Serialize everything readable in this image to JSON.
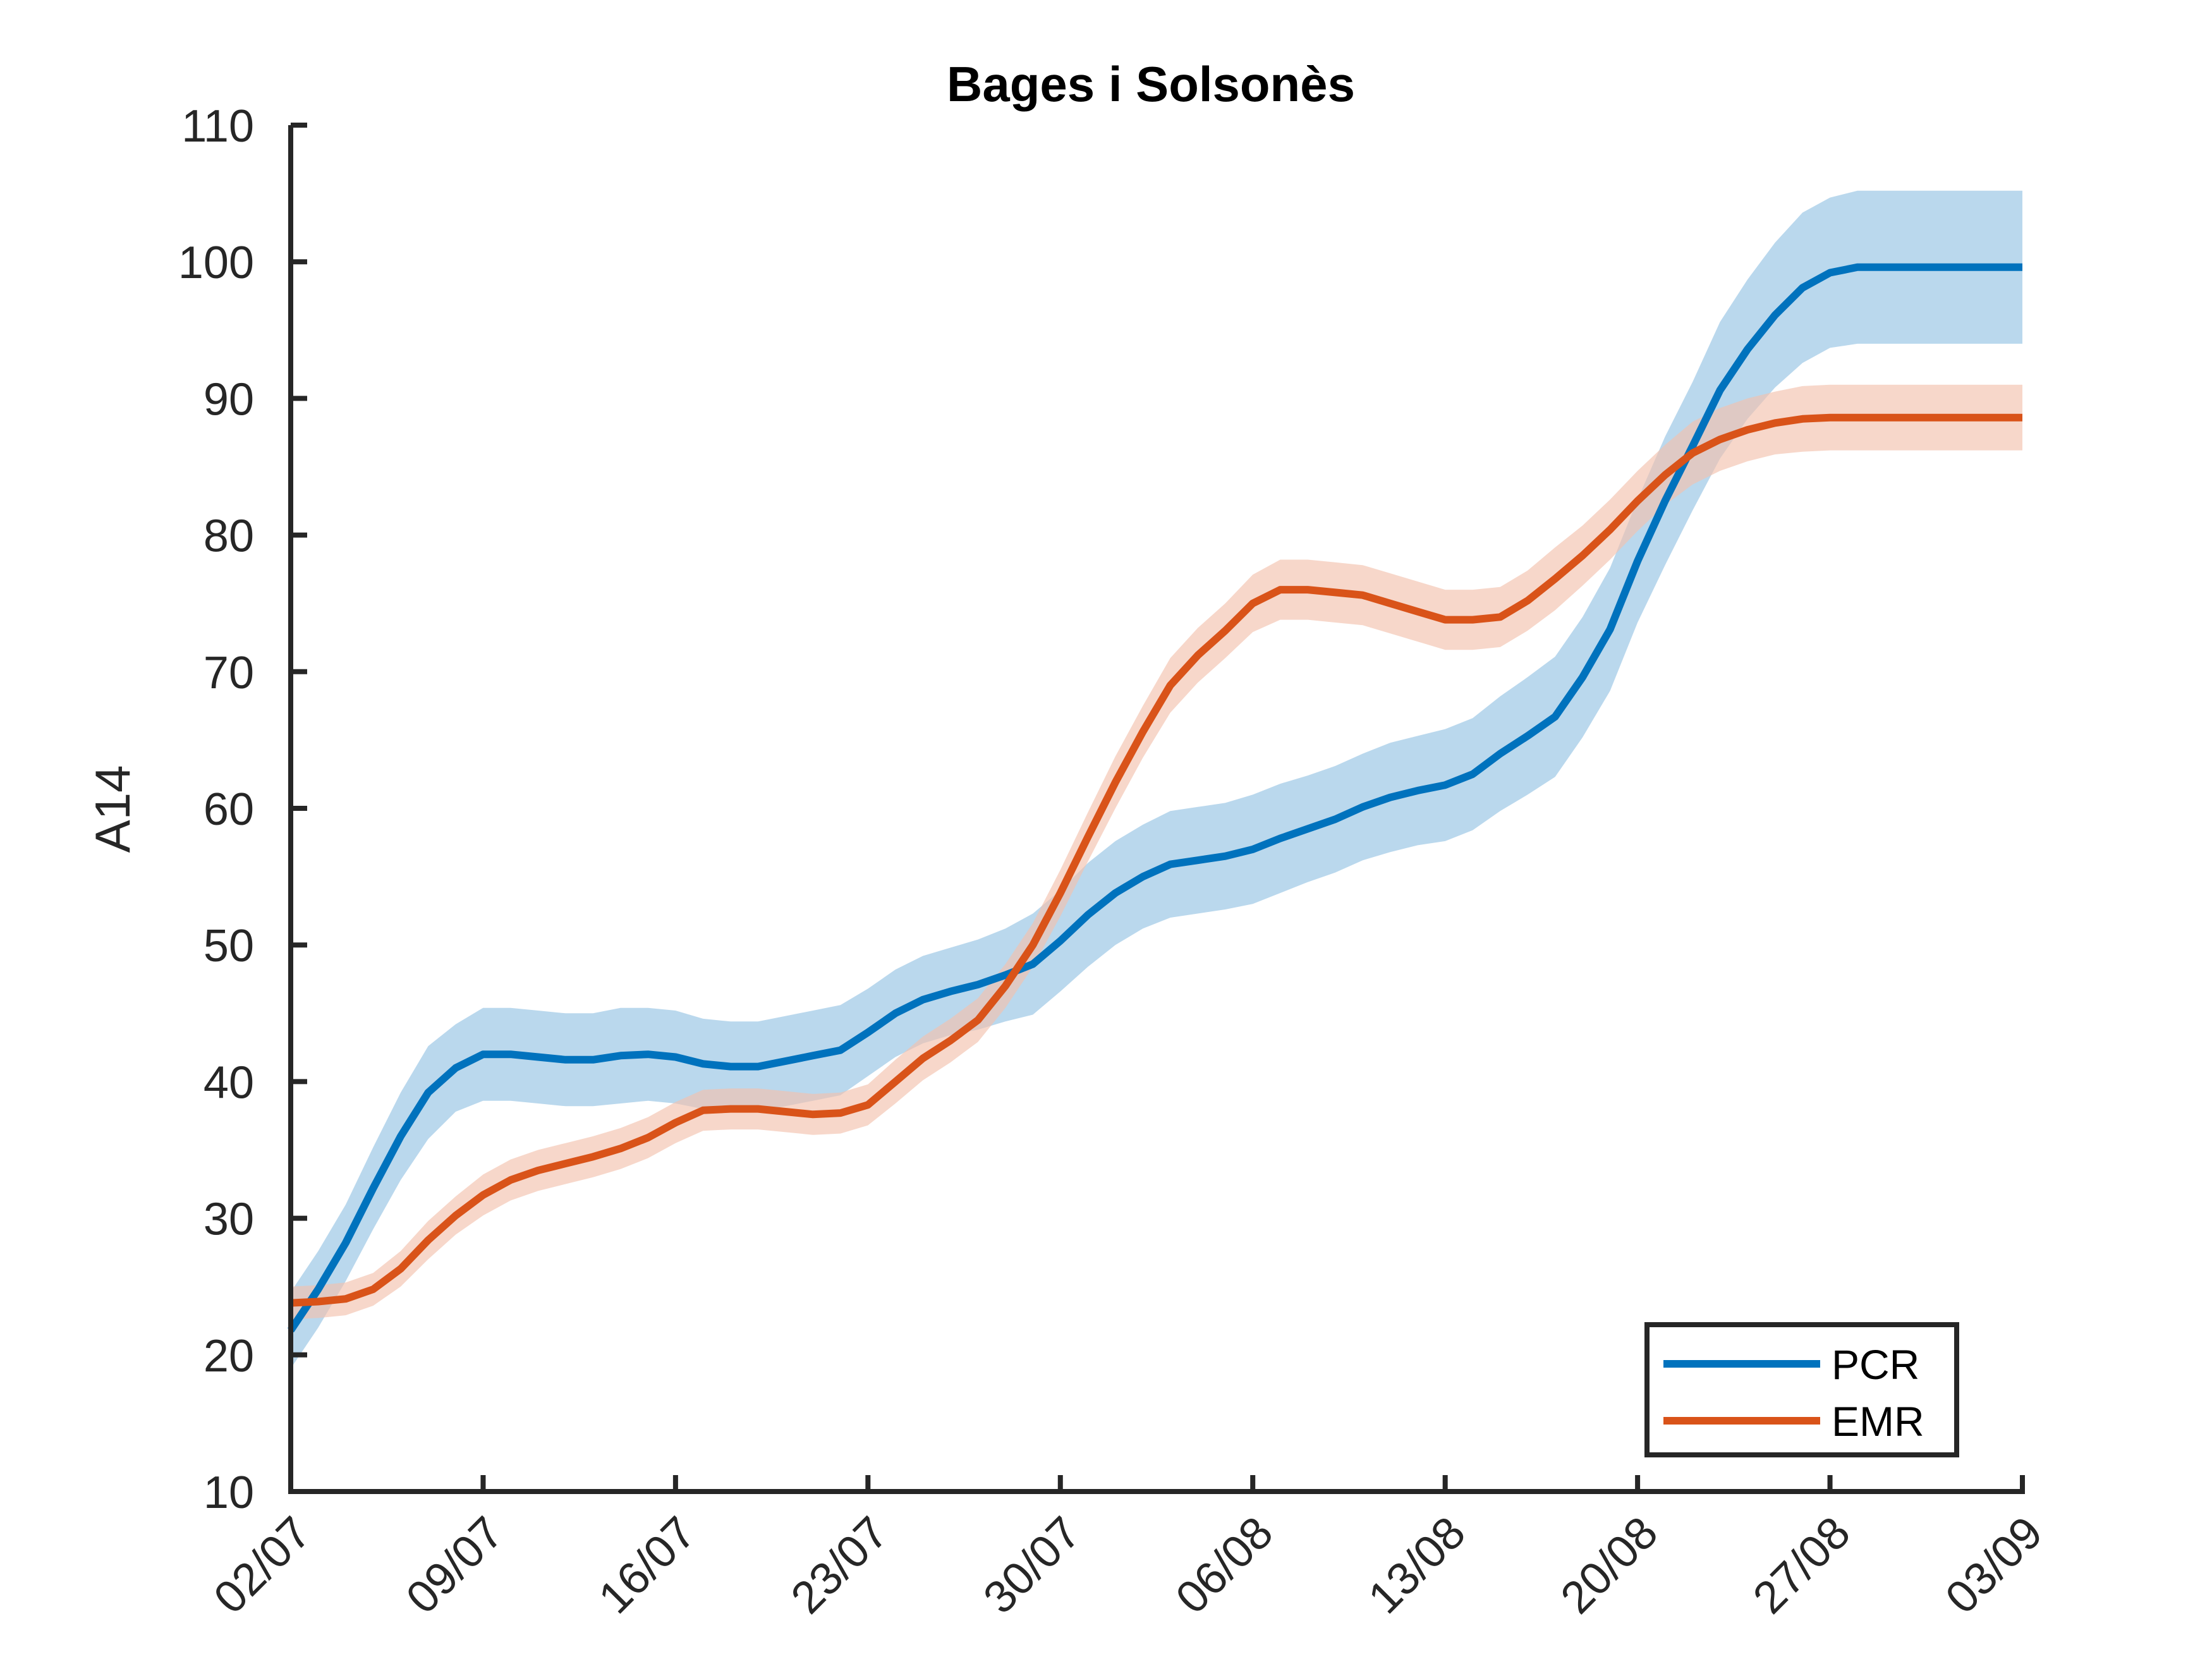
{
  "chart_data": {
    "type": "line",
    "title": "Bages i Solsonès",
    "xlabel": "",
    "ylabel": "A14",
    "ylim": [
      10,
      110
    ],
    "yticks": [
      10,
      20,
      30,
      40,
      50,
      60,
      70,
      80,
      90,
      100,
      110
    ],
    "x_tick_labels": [
      "02/07",
      "09/07",
      "16/07",
      "23/07",
      "30/07",
      "06/08",
      "13/08",
      "20/08",
      "27/08",
      "03/09"
    ],
    "x_tick_days": [
      0,
      7,
      14,
      21,
      28,
      35,
      42,
      49,
      56,
      63
    ],
    "legend_position": "bottom-right",
    "grid": false,
    "series": [
      {
        "name": "PCR",
        "color": "#0072BD",
        "band_color": "#9CC8E6",
        "day": [
          0,
          1,
          2,
          3,
          4,
          5,
          6,
          7,
          8,
          9,
          10,
          11,
          12,
          13,
          14,
          15,
          16,
          17,
          18,
          19,
          20,
          21,
          22,
          23,
          24,
          25,
          26,
          27,
          28,
          29,
          30,
          31,
          32,
          33,
          34,
          35,
          36,
          37,
          38,
          39,
          40,
          41,
          42,
          43,
          44,
          45,
          46,
          47,
          48,
          49,
          50,
          51,
          52,
          53,
          54,
          55,
          56,
          57,
          58,
          59,
          60,
          61,
          62,
          63
        ],
        "values": [
          21.8,
          24.8,
          28.2,
          32.2,
          36.0,
          39.2,
          41.0,
          42.0,
          42.0,
          41.8,
          41.6,
          41.6,
          41.9,
          42.0,
          41.8,
          41.3,
          41.1,
          41.1,
          41.5,
          41.9,
          42.3,
          43.6,
          45.0,
          46.0,
          46.6,
          47.1,
          47.8,
          48.6,
          50.3,
          52.2,
          53.8,
          55.0,
          55.9,
          56.2,
          56.5,
          57.0,
          57.8,
          58.5,
          59.2,
          60.1,
          60.8,
          61.3,
          61.7,
          62.5,
          64.0,
          65.3,
          66.7,
          69.6,
          73.1,
          78.1,
          82.5,
          86.5,
          90.6,
          93.6,
          96.1,
          98.1,
          99.2,
          99.6,
          99.6,
          99.6,
          99.6,
          99.6,
          99.6,
          99.6
        ],
        "lower": [
          19.0,
          22.0,
          25.4,
          29.2,
          32.8,
          35.8,
          37.8,
          38.6,
          38.6,
          38.4,
          38.2,
          38.2,
          38.4,
          38.6,
          38.4,
          38.0,
          37.8,
          37.8,
          38.2,
          38.6,
          39.0,
          40.4,
          41.8,
          42.8,
          43.4,
          43.8,
          44.4,
          44.9,
          46.6,
          48.4,
          50.0,
          51.2,
          52.0,
          52.3,
          52.6,
          53.0,
          53.8,
          54.6,
          55.3,
          56.2,
          56.8,
          57.3,
          57.6,
          58.4,
          59.8,
          61.0,
          62.3,
          65.2,
          68.6,
          73.6,
          77.8,
          81.8,
          85.6,
          88.5,
          90.8,
          92.6,
          93.7,
          94.0,
          94.0,
          94.0,
          94.0,
          94.0,
          94.0,
          94.0
        ],
        "upper": [
          24.6,
          27.6,
          31.0,
          35.2,
          39.2,
          42.6,
          44.2,
          45.4,
          45.4,
          45.2,
          45.0,
          45.0,
          45.4,
          45.4,
          45.2,
          44.6,
          44.4,
          44.4,
          44.8,
          45.2,
          45.6,
          46.8,
          48.2,
          49.2,
          49.8,
          50.4,
          51.2,
          52.3,
          54.0,
          56.0,
          57.6,
          58.8,
          59.8,
          60.1,
          60.4,
          61.0,
          61.8,
          62.4,
          63.1,
          64.0,
          64.8,
          65.3,
          65.8,
          66.6,
          68.2,
          69.6,
          71.1,
          74.0,
          77.6,
          82.6,
          87.2,
          91.2,
          95.6,
          98.7,
          101.4,
          103.6,
          104.7,
          105.2,
          105.2,
          105.2,
          105.2,
          105.2,
          105.2,
          105.2
        ]
      },
      {
        "name": "EMR",
        "color": "#D95319",
        "band_color": "#F2C2AE",
        "day": [
          0,
          1,
          2,
          3,
          4,
          5,
          6,
          7,
          8,
          9,
          10,
          11,
          12,
          13,
          14,
          15,
          16,
          17,
          18,
          19,
          20,
          21,
          22,
          23,
          24,
          25,
          26,
          27,
          28,
          29,
          30,
          31,
          32,
          33,
          34,
          35,
          36,
          37,
          38,
          39,
          40,
          41,
          42,
          43,
          44,
          45,
          46,
          47,
          48,
          49,
          50,
          51,
          52,
          53,
          54,
          55,
          56,
          57,
          58,
          59,
          60,
          61,
          62,
          63
        ],
        "values": [
          23.8,
          23.9,
          24.1,
          24.8,
          26.3,
          28.4,
          30.2,
          31.7,
          32.8,
          33.5,
          34.0,
          34.5,
          35.1,
          35.9,
          37.0,
          37.9,
          38.0,
          38.0,
          37.8,
          37.6,
          37.7,
          38.3,
          40.0,
          41.7,
          43.0,
          44.5,
          47.0,
          50.0,
          53.8,
          57.9,
          61.9,
          65.6,
          69.0,
          71.2,
          73.0,
          75.0,
          76.0,
          76.0,
          75.8,
          75.6,
          75.0,
          74.4,
          73.8,
          73.8,
          74.0,
          75.2,
          76.8,
          78.5,
          80.4,
          82.5,
          84.4,
          86.0,
          87.0,
          87.7,
          88.2,
          88.5,
          88.6,
          88.6,
          88.6,
          88.6,
          88.6,
          88.6,
          88.6,
          88.6
        ],
        "lower": [
          22.6,
          22.7,
          22.9,
          23.6,
          25.0,
          27.0,
          28.8,
          30.2,
          31.3,
          32.0,
          32.5,
          33.0,
          33.6,
          34.4,
          35.5,
          36.4,
          36.5,
          36.5,
          36.3,
          36.1,
          36.2,
          36.8,
          38.4,
          40.1,
          41.4,
          42.9,
          45.4,
          48.4,
          52.1,
          56.1,
          60.0,
          63.7,
          67.0,
          69.2,
          71.0,
          72.9,
          73.8,
          73.8,
          73.6,
          73.4,
          72.8,
          72.2,
          71.6,
          71.6,
          71.8,
          73.0,
          74.5,
          76.3,
          78.2,
          80.3,
          82.2,
          83.7,
          84.7,
          85.4,
          85.9,
          86.1,
          86.2,
          86.2,
          86.2,
          86.2,
          86.2,
          86.2,
          86.2,
          86.2
        ],
        "upper": [
          25.0,
          25.1,
          25.3,
          26.0,
          27.6,
          29.8,
          31.6,
          33.2,
          34.3,
          35.0,
          35.5,
          36.0,
          36.6,
          37.4,
          38.5,
          39.4,
          39.5,
          39.5,
          39.3,
          39.1,
          39.2,
          39.8,
          41.6,
          43.3,
          44.6,
          46.1,
          48.6,
          51.6,
          55.5,
          59.7,
          63.8,
          67.5,
          71.0,
          73.2,
          75.0,
          77.1,
          78.2,
          78.2,
          78.0,
          77.8,
          77.2,
          76.6,
          76.0,
          76.0,
          76.2,
          77.4,
          79.1,
          80.7,
          82.6,
          84.7,
          86.6,
          88.3,
          89.3,
          90.0,
          90.5,
          90.9,
          91.0,
          91.0,
          91.0,
          91.0,
          91.0,
          91.0,
          91.0,
          91.0
        ]
      }
    ]
  }
}
